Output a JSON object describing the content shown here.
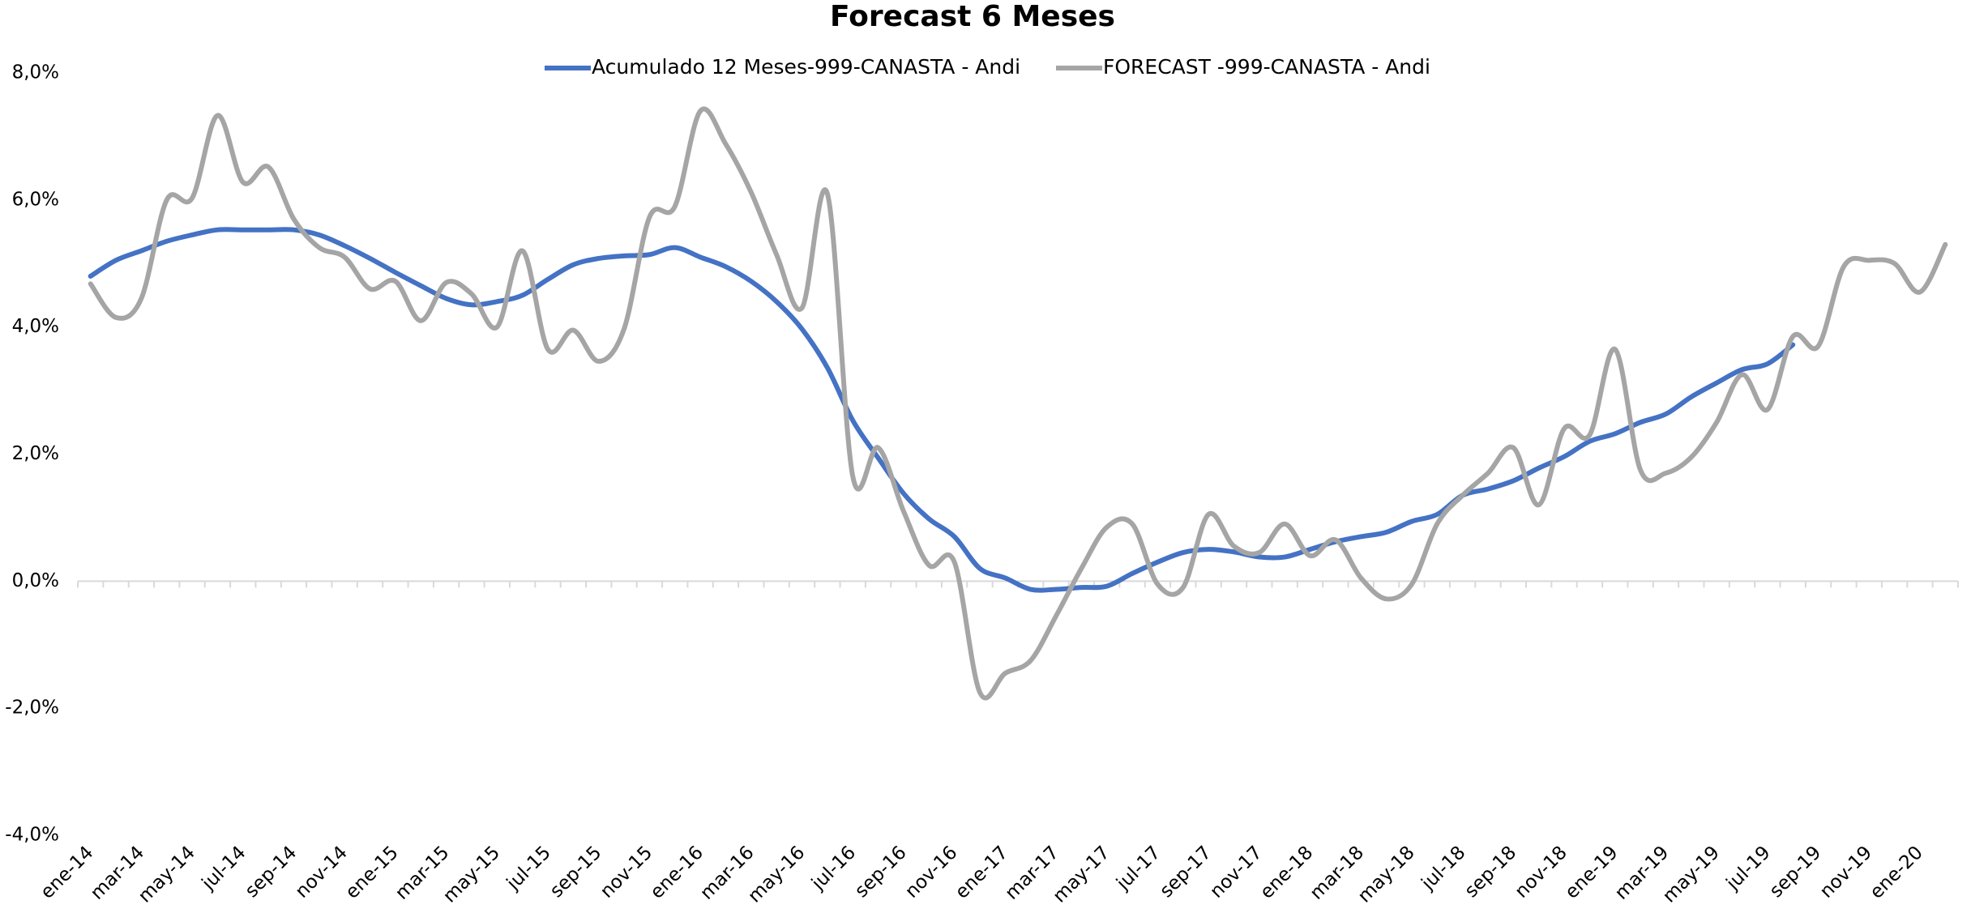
{
  "chart_data": {
    "type": "line",
    "title": "Forecast 6 Meses",
    "categories": [
      "ene-14",
      null,
      "mar-14",
      null,
      "may-14",
      null,
      "jul-14",
      null,
      "sep-14",
      null,
      "nov-14",
      null,
      "ene-15",
      null,
      "mar-15",
      null,
      "may-15",
      null,
      "jul-15",
      null,
      "sep-15",
      null,
      "nov-15",
      null,
      "ene-16",
      null,
      "mar-16",
      null,
      "may-16",
      null,
      "jul-16",
      null,
      "sep-16",
      null,
      "nov-16",
      null,
      "ene-17",
      null,
      "mar-17",
      null,
      "may-17",
      null,
      "jul-17",
      null,
      "sep-17",
      null,
      "nov-17",
      null,
      "ene-18",
      null,
      "mar-18",
      null,
      "may-18",
      null,
      "jul-18",
      null,
      "sep-18",
      null,
      "nov-18",
      null,
      "ene-19",
      null,
      "mar-19",
      null,
      "may-19",
      null,
      "jul-19",
      null,
      "sep-19",
      null,
      "nov-19",
      null,
      "ene-20",
      null
    ],
    "series": [
      {
        "name": "Acumulado 12 Meses-999-CANASTA - Andi",
        "color": "#4472c4",
        "values": [
          4.8,
          5.05,
          5.2,
          5.35,
          5.45,
          5.53,
          5.53,
          5.53,
          5.53,
          5.45,
          5.28,
          5.08,
          4.86,
          4.65,
          4.45,
          4.35,
          4.4,
          4.5,
          4.75,
          4.98,
          5.08,
          5.12,
          5.14,
          5.25,
          5.1,
          4.95,
          4.72,
          4.4,
          3.97,
          3.36,
          2.53,
          1.94,
          1.38,
          0.98,
          0.7,
          0.2,
          0.05,
          -0.13,
          -0.13,
          -0.1,
          -0.08,
          0.12,
          0.3,
          0.45,
          0.5,
          0.46,
          0.38,
          0.38,
          0.5,
          0.62,
          0.7,
          0.77,
          0.94,
          1.05,
          1.35,
          1.45,
          1.58,
          1.78,
          1.96,
          2.2,
          2.32,
          2.5,
          2.63,
          2.9,
          3.12,
          3.33,
          3.42,
          3.72,
          null,
          null,
          null,
          null,
          null,
          null
        ]
      },
      {
        "name": "FORECAST -999-CANASTA - Andi",
        "color": "#a5a5a5",
        "values": [
          4.68,
          4.15,
          4.45,
          6.0,
          6.03,
          7.33,
          6.28,
          6.52,
          5.7,
          5.25,
          5.1,
          4.6,
          4.72,
          4.1,
          4.7,
          4.52,
          4.0,
          5.2,
          3.65,
          3.95,
          3.46,
          3.97,
          5.73,
          5.9,
          7.4,
          6.88,
          6.12,
          5.14,
          4.3,
          6.1,
          1.65,
          2.1,
          1.1,
          0.25,
          0.3,
          -1.75,
          -1.45,
          -1.25,
          -0.55,
          0.2,
          0.85,
          0.9,
          -0.05,
          -0.1,
          1.05,
          0.55,
          0.45,
          0.9,
          0.4,
          0.65,
          0.05,
          -0.28,
          -0.05,
          0.9,
          1.35,
          1.7,
          2.1,
          1.2,
          2.4,
          2.3,
          3.65,
          1.75,
          1.7,
          1.95,
          2.5,
          3.25,
          2.7,
          3.85,
          3.7,
          4.95,
          5.05,
          5.0,
          4.55,
          5.3
        ]
      }
    ],
    "ylim": [
      -4,
      8
    ],
    "yticks": [
      {
        "value": -4,
        "label": "-4,0%"
      },
      {
        "value": -2,
        "label": "-2,0%"
      },
      {
        "value": 0,
        "label": "0,0%"
      },
      {
        "value": 2,
        "label": "2,0%"
      },
      {
        "value": 4,
        "label": "4,0%"
      },
      {
        "value": 6,
        "label": "6,0%"
      },
      {
        "value": 8,
        "label": "8,0%"
      }
    ],
    "grid": false,
    "legend": "top"
  }
}
